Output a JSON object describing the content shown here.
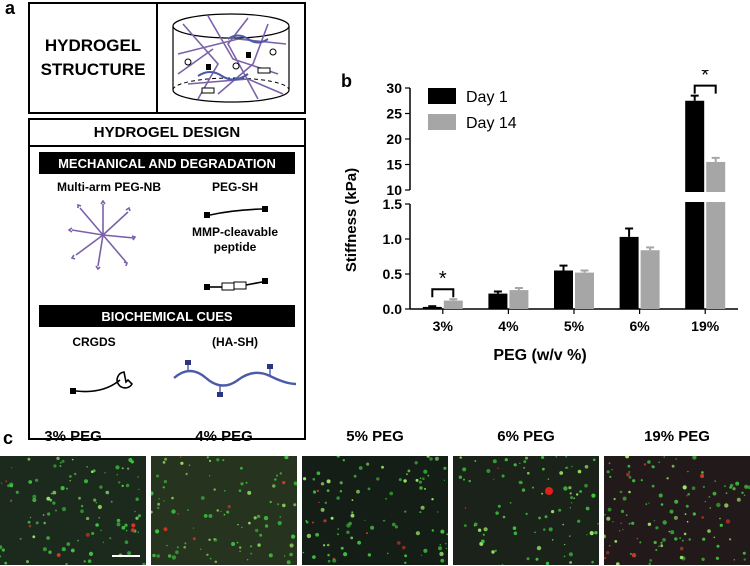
{
  "panel_a": {
    "label": "a",
    "structure_title_1": "HYDROGEL",
    "structure_title_2": "STRUCTURE",
    "design_title": "HYDROGEL DESIGN",
    "mech_header": "MECHANICAL AND DEGRADATION",
    "multiarm_label": "Multi-arm PEG-NB",
    "pegsh_label": "PEG-SH",
    "mmp_label_1": "MMP-cleavable",
    "mmp_label_2": "peptide",
    "biochem_header": "BIOCHEMICAL CUES",
    "crgds_label": "CRGDS",
    "hash_label": "(HA-SH)",
    "colors": {
      "polymer": "#7b62a8",
      "hyaluronan": "#4a5aa8"
    }
  },
  "panel_b": {
    "label": "b"
  },
  "chart_data": {
    "type": "bar",
    "categories": [
      "3%",
      "4%",
      "5%",
      "6%",
      "19%"
    ],
    "series": [
      {
        "name": "Day 1",
        "color": "#000000",
        "values": [
          0.03,
          0.22,
          0.55,
          1.03,
          27.5
        ],
        "errors": [
          0.01,
          0.03,
          0.07,
          0.12,
          1.0
        ]
      },
      {
        "name": "Day 14",
        "color": "#a6a6a6",
        "values": [
          0.12,
          0.27,
          0.52,
          0.84,
          15.5
        ],
        "errors": [
          0.02,
          0.03,
          0.03,
          0.04,
          0.8
        ]
      }
    ],
    "xlabel": "PEG (w/v %)",
    "ylabel": "Stiffness (kPa)",
    "broken_axis": true,
    "lower_range": [
      0,
      1.5
    ],
    "lower_ticks": [
      "0.0",
      "0.5",
      "1.0",
      "1.5"
    ],
    "upper_range": [
      10,
      30
    ],
    "upper_ticks": [
      "10",
      "15",
      "20",
      "25",
      "30"
    ],
    "significance": [
      {
        "category": "3%",
        "label": "*"
      },
      {
        "category": "19%",
        "label": "*"
      }
    ],
    "legend_position": "top-left"
  },
  "panel_c": {
    "label": "c",
    "images": [
      {
        "label": "3% PEG"
      },
      {
        "label": "4% PEG"
      },
      {
        "label": "5% PEG"
      },
      {
        "label": "6% PEG"
      },
      {
        "label": "19% PEG"
      }
    ]
  }
}
